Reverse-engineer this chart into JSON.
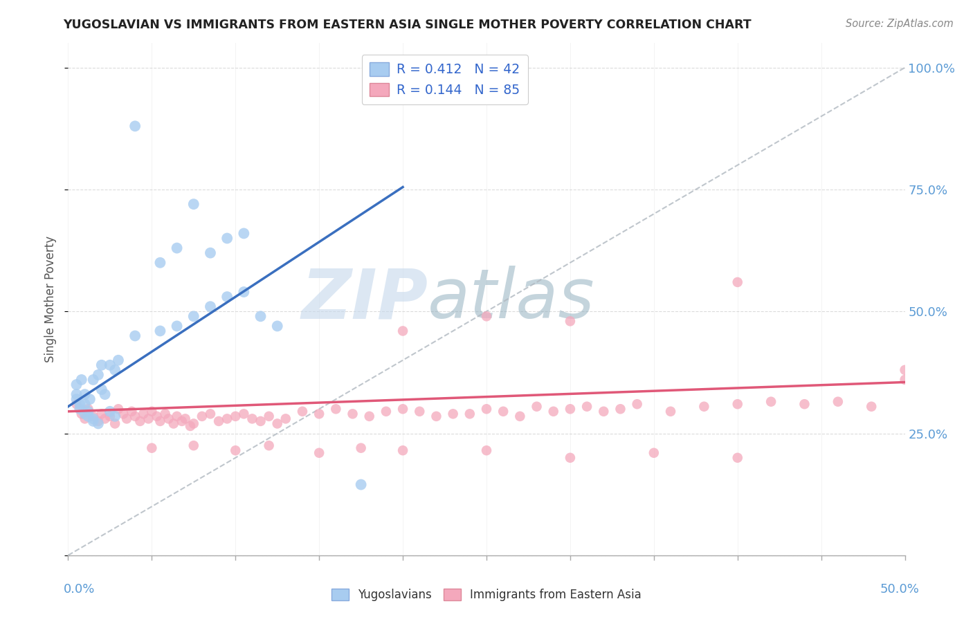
{
  "title": "YUGOSLAVIAN VS IMMIGRANTS FROM EASTERN ASIA SINGLE MOTHER POVERTY CORRELATION CHART",
  "source": "Source: ZipAtlas.com",
  "ylabel": "Single Mother Poverty",
  "blue_R": 0.412,
  "blue_N": 42,
  "pink_R": 0.144,
  "pink_N": 85,
  "blue_color": "#A8CCF0",
  "pink_color": "#F4A8BC",
  "blue_line_color": "#3A6FBF",
  "pink_line_color": "#E05878",
  "legend_blue_label": "Yugoslavians",
  "legend_pink_label": "Immigrants from Eastern Asia",
  "watermark_text": "ZIPatlas",
  "x_range": [
    0.0,
    0.5
  ],
  "y_range": [
    0.0,
    1.05
  ],
  "blue_line_x": [
    0.0,
    0.2
  ],
  "blue_line_y": [
    0.305,
    0.755
  ],
  "pink_line_x": [
    0.0,
    0.5
  ],
  "pink_line_y": [
    0.295,
    0.355
  ],
  "diag_line_x": [
    0.0,
    0.5
  ],
  "diag_line_y": [
    0.0,
    1.0
  ],
  "blue_scatter_x": [
    0.005,
    0.007,
    0.01,
    0.012,
    0.015,
    0.018,
    0.02,
    0.022,
    0.025,
    0.028,
    0.005,
    0.008,
    0.01,
    0.013,
    0.015,
    0.018,
    0.02,
    0.025,
    0.028,
    0.03,
    0.005,
    0.007,
    0.01,
    0.012,
    0.015,
    0.04,
    0.055,
    0.065,
    0.075,
    0.085,
    0.095,
    0.105,
    0.115,
    0.125,
    0.055,
    0.065,
    0.075,
    0.085,
    0.095,
    0.105,
    0.175,
    0.04
  ],
  "blue_scatter_y": [
    0.33,
    0.3,
    0.31,
    0.295,
    0.28,
    0.27,
    0.34,
    0.33,
    0.295,
    0.285,
    0.35,
    0.36,
    0.33,
    0.32,
    0.36,
    0.37,
    0.39,
    0.39,
    0.38,
    0.4,
    0.32,
    0.31,
    0.29,
    0.285,
    0.275,
    0.45,
    0.46,
    0.47,
    0.49,
    0.51,
    0.53,
    0.54,
    0.49,
    0.47,
    0.6,
    0.63,
    0.72,
    0.62,
    0.65,
    0.66,
    0.145,
    0.88
  ],
  "pink_scatter_x": [
    0.005,
    0.008,
    0.01,
    0.012,
    0.015,
    0.018,
    0.02,
    0.022,
    0.025,
    0.028,
    0.03,
    0.033,
    0.035,
    0.038,
    0.04,
    0.043,
    0.045,
    0.048,
    0.05,
    0.053,
    0.055,
    0.058,
    0.06,
    0.063,
    0.065,
    0.068,
    0.07,
    0.073,
    0.075,
    0.08,
    0.085,
    0.09,
    0.095,
    0.1,
    0.105,
    0.11,
    0.115,
    0.12,
    0.125,
    0.13,
    0.14,
    0.15,
    0.16,
    0.17,
    0.18,
    0.19,
    0.2,
    0.21,
    0.22,
    0.23,
    0.24,
    0.25,
    0.26,
    0.27,
    0.28,
    0.29,
    0.3,
    0.31,
    0.32,
    0.33,
    0.34,
    0.36,
    0.38,
    0.4,
    0.42,
    0.44,
    0.46,
    0.48,
    0.5,
    0.05,
    0.075,
    0.1,
    0.12,
    0.15,
    0.175,
    0.2,
    0.25,
    0.3,
    0.35,
    0.4,
    0.2,
    0.25,
    0.3,
    0.4,
    0.5
  ],
  "pink_scatter_y": [
    0.31,
    0.29,
    0.28,
    0.3,
    0.285,
    0.275,
    0.29,
    0.28,
    0.285,
    0.27,
    0.3,
    0.29,
    0.28,
    0.295,
    0.285,
    0.275,
    0.29,
    0.28,
    0.295,
    0.285,
    0.275,
    0.29,
    0.28,
    0.27,
    0.285,
    0.275,
    0.28,
    0.265,
    0.27,
    0.285,
    0.29,
    0.275,
    0.28,
    0.285,
    0.29,
    0.28,
    0.275,
    0.285,
    0.27,
    0.28,
    0.295,
    0.29,
    0.3,
    0.29,
    0.285,
    0.295,
    0.3,
    0.295,
    0.285,
    0.29,
    0.29,
    0.3,
    0.295,
    0.285,
    0.305,
    0.295,
    0.3,
    0.305,
    0.295,
    0.3,
    0.31,
    0.295,
    0.305,
    0.31,
    0.315,
    0.31,
    0.315,
    0.305,
    0.36,
    0.22,
    0.225,
    0.215,
    0.225,
    0.21,
    0.22,
    0.215,
    0.215,
    0.2,
    0.21,
    0.2,
    0.46,
    0.49,
    0.48,
    0.56,
    0.38
  ]
}
